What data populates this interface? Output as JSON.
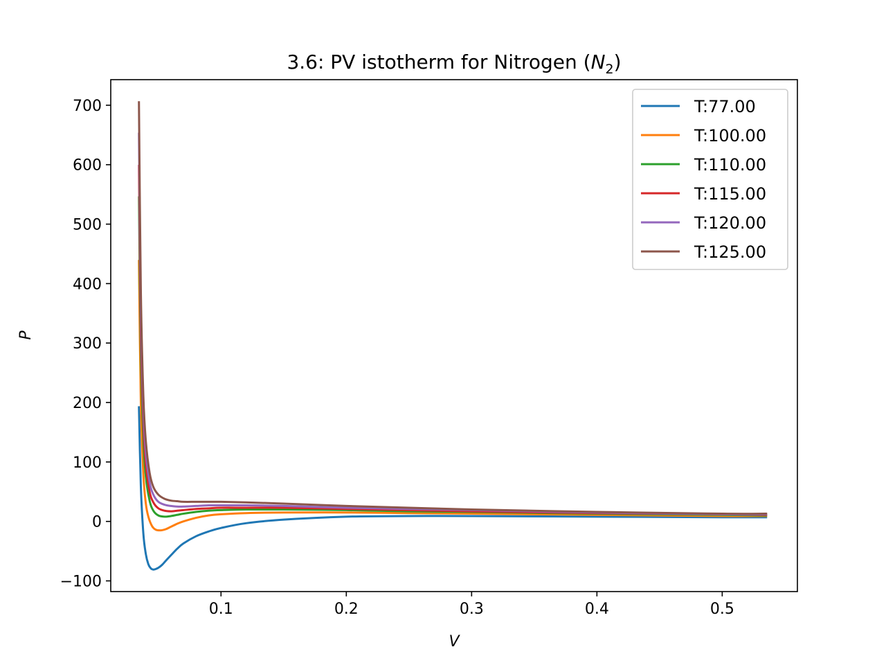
{
  "chart_data": {
    "type": "line",
    "title": {
      "prefix": "3.6: PV istotherm for Nitrogen (",
      "symbol": "N",
      "subscript": "2",
      "suffix": ")"
    },
    "xlabel": "V",
    "ylabel": "P",
    "xlim": [
      0.012,
      0.56
    ],
    "ylim": [
      -118,
      743
    ],
    "x_ticks": [
      0.1,
      0.2,
      0.3,
      0.4,
      0.5
    ],
    "x_tick_labels": [
      "0.1",
      "0.2",
      "0.3",
      "0.4",
      "0.5"
    ],
    "y_ticks": [
      -100,
      0,
      100,
      200,
      300,
      400,
      500,
      600,
      700
    ],
    "y_tick_labels": [
      "−100",
      "0",
      "100",
      "200",
      "300",
      "400",
      "500",
      "600",
      "700"
    ],
    "grid": false,
    "legend_position": "top-right",
    "series": [
      {
        "name": "T:77.00",
        "color": "#1f77b4",
        "x": [
          0.0345,
          0.036,
          0.038,
          0.04,
          0.042,
          0.044,
          0.046,
          0.048,
          0.05,
          0.053,
          0.056,
          0.06,
          0.065,
          0.07,
          0.08,
          0.09,
          0.1,
          0.12,
          0.15,
          0.2,
          0.25,
          0.3,
          0.4,
          0.5,
          0.535
        ],
        "y": [
          192,
          60,
          -20,
          -55,
          -72,
          -79,
          -81,
          -80,
          -78,
          -73,
          -66,
          -57,
          -46,
          -37,
          -25,
          -17,
          -11,
          -3,
          3,
          8,
          9,
          9,
          8,
          7,
          7
        ]
      },
      {
        "name": "T:100.00",
        "color": "#ff7f0e",
        "x": [
          0.0345,
          0.036,
          0.038,
          0.04,
          0.042,
          0.045,
          0.048,
          0.052,
          0.056,
          0.06,
          0.065,
          0.07,
          0.08,
          0.09,
          0.1,
          0.12,
          0.15,
          0.2,
          0.25,
          0.3,
          0.4,
          0.5,
          0.535
        ],
        "y": [
          438,
          200,
          80,
          30,
          8,
          -8,
          -14,
          -15,
          -13,
          -9,
          -4,
          0,
          6,
          10,
          12,
          14,
          15,
          15,
          14,
          13,
          11,
          9,
          9
        ]
      },
      {
        "name": "T:110.00",
        "color": "#2ca02c",
        "x": [
          0.0345,
          0.036,
          0.038,
          0.04,
          0.043,
          0.046,
          0.05,
          0.055,
          0.06,
          0.065,
          0.07,
          0.08,
          0.09,
          0.1,
          0.12,
          0.15,
          0.2,
          0.25,
          0.3,
          0.4,
          0.5,
          0.535
        ],
        "y": [
          545,
          280,
          140,
          75,
          35,
          18,
          10,
          8,
          9,
          11,
          13,
          16,
          18,
          19,
          20,
          20,
          19,
          17,
          16,
          13,
          11,
          10
        ]
      },
      {
        "name": "T:115.00",
        "color": "#d62728",
        "x": [
          0.0345,
          0.036,
          0.038,
          0.04,
          0.043,
          0.046,
          0.05,
          0.055,
          0.06,
          0.065,
          0.07,
          0.08,
          0.09,
          0.1,
          0.12,
          0.15,
          0.2,
          0.25,
          0.3,
          0.4,
          0.5,
          0.535
        ],
        "y": [
          598,
          320,
          165,
          95,
          50,
          32,
          22,
          18,
          17,
          18,
          19,
          21,
          22,
          23,
          23,
          23,
          21,
          19,
          17,
          14,
          12,
          11
        ]
      },
      {
        "name": "T:120.00",
        "color": "#9467bd",
        "x": [
          0.0345,
          0.036,
          0.038,
          0.04,
          0.043,
          0.046,
          0.05,
          0.055,
          0.06,
          0.065,
          0.07,
          0.08,
          0.09,
          0.1,
          0.12,
          0.15,
          0.2,
          0.25,
          0.3,
          0.4,
          0.5,
          0.535
        ],
        "y": [
          652,
          355,
          190,
          115,
          66,
          45,
          33,
          28,
          26,
          25,
          25,
          26,
          27,
          27,
          27,
          26,
          23,
          21,
          19,
          15,
          12,
          12
        ]
      },
      {
        "name": "T:125.00",
        "color": "#8c564b",
        "x": [
          0.0345,
          0.036,
          0.038,
          0.04,
          0.043,
          0.046,
          0.05,
          0.055,
          0.06,
          0.065,
          0.07,
          0.08,
          0.09,
          0.1,
          0.12,
          0.15,
          0.2,
          0.25,
          0.3,
          0.4,
          0.5,
          0.535
        ],
        "y": [
          705,
          390,
          212,
          135,
          82,
          58,
          45,
          38,
          35,
          34,
          33,
          33,
          33,
          33,
          32,
          30,
          26,
          23,
          20,
          16,
          13,
          13
        ]
      }
    ]
  }
}
